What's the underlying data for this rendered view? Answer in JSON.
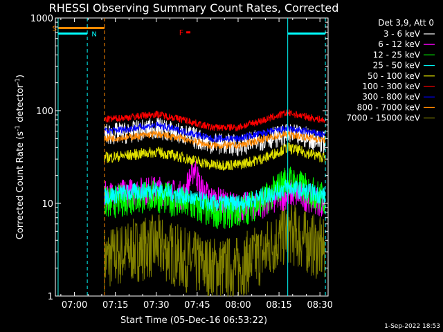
{
  "chart_data": {
    "type": "line",
    "title": "RHESSI Observing Summary Count Rates, Corrected",
    "xlabel": "Start Time (05-Dec-16 06:53:22)",
    "ylabel_main": "Corrected Count Rate (s",
    "ylabel_sup1": "-1",
    "ylabel_mid": " detector",
    "ylabel_sup2": "-1",
    "ylabel_end": ")",
    "ylog": true,
    "ylim": [
      1,
      1000
    ],
    "xlim_minutes_after_0700": [
      -7,
      93
    ],
    "x_ticks": [
      {
        "minute": 0,
        "label": "07:00"
      },
      {
        "minute": 15,
        "label": "07:15"
      },
      {
        "minute": 30,
        "label": "07:30"
      },
      {
        "minute": 45,
        "label": "07:45"
      },
      {
        "minute": 60,
        "label": "08:00"
      },
      {
        "minute": 75,
        "label": "08:15"
      },
      {
        "minute": 90,
        "label": "08:30"
      }
    ],
    "y_ticks": [
      {
        "value": 1,
        "label": "1"
      },
      {
        "value": 10,
        "label": "10"
      },
      {
        "value": 100,
        "label": "100"
      },
      {
        "value": 1000,
        "label": "1000"
      }
    ],
    "legend_header": "Det 3,9, Att 0",
    "legend_placement": "right",
    "series": [
      {
        "name": "3 - 6 keV",
        "color": "#ffffff",
        "x": [
          11,
          20,
          30,
          40,
          50,
          60,
          70,
          78,
          85,
          92
        ],
        "y": [
          55,
          58,
          65,
          55,
          45,
          42,
          50,
          55,
          52,
          45
        ]
      },
      {
        "name": "6 - 12 keV",
        "color": "#ff00ff",
        "x": [
          11,
          20,
          30,
          40,
          44,
          46,
          50,
          60,
          70,
          80,
          92
        ],
        "y": [
          12,
          13,
          14,
          12,
          25,
          15,
          11,
          9,
          10,
          13,
          10
        ]
      },
      {
        "name": "12 - 25 keV",
        "color": "#00ff00",
        "x": [
          11,
          20,
          30,
          40,
          50,
          60,
          70,
          78,
          92
        ],
        "y": [
          10,
          11,
          12,
          10,
          8,
          8,
          11,
          18,
          11
        ]
      },
      {
        "name": "25 - 50 keV",
        "color": "#00ffff",
        "x": [
          11,
          20,
          30,
          40,
          50,
          60,
          70,
          78,
          92
        ],
        "y": [
          12,
          13,
          14,
          12,
          10,
          10,
          12,
          15,
          12
        ]
      },
      {
        "name": "50 - 100 keV",
        "color": "#e0e000",
        "x": [
          11,
          20,
          30,
          40,
          50,
          60,
          70,
          78,
          92
        ],
        "y": [
          31,
          33,
          36,
          31,
          26,
          26,
          31,
          40,
          31
        ]
      },
      {
        "name": "100 - 300 keV",
        "color": "#ff0000",
        "x": [
          11,
          20,
          30,
          40,
          50,
          60,
          70,
          78,
          92
        ],
        "y": [
          80,
          85,
          92,
          80,
          66,
          66,
          80,
          95,
          78
        ]
      },
      {
        "name": "300 - 800 keV",
        "color": "#0000ff",
        "x": [
          11,
          20,
          30,
          40,
          50,
          60,
          70,
          78,
          92
        ],
        "y": [
          60,
          64,
          70,
          60,
          50,
          50,
          58,
          64,
          55
        ]
      },
      {
        "name": "800 - 7000 keV",
        "color": "#ff8800",
        "x": [
          11,
          20,
          30,
          40,
          50,
          60,
          70,
          78,
          92
        ],
        "y": [
          50,
          52,
          56,
          50,
          42,
          42,
          50,
          56,
          48
        ]
      },
      {
        "name": "7000 - 15000 keV",
        "color": "#808000",
        "x": [
          11,
          20,
          30,
          40,
          50,
          60,
          70,
          78,
          92
        ],
        "y": [
          2.5,
          3,
          3.5,
          2.5,
          2,
          2,
          3,
          5,
          3
        ]
      }
    ],
    "intervals": [
      {
        "label": "S",
        "color": "#ff8800",
        "x_start": -6,
        "x_end": 11,
        "level": 780
      },
      {
        "label": "N",
        "color": "#00ffff",
        "x_start": -6,
        "x_end": 4.7,
        "level": 680
      },
      {
        "label": "",
        "color": "#00ffff",
        "x_start": 78.2,
        "x_end": 92,
        "level": 680
      }
    ],
    "flare_marker": {
      "label": "F",
      "color": "#ff0000",
      "x_start": 41,
      "x_end": 42.5,
      "level": 700
    },
    "footer_date": "1-Sep-2022 18:53"
  }
}
